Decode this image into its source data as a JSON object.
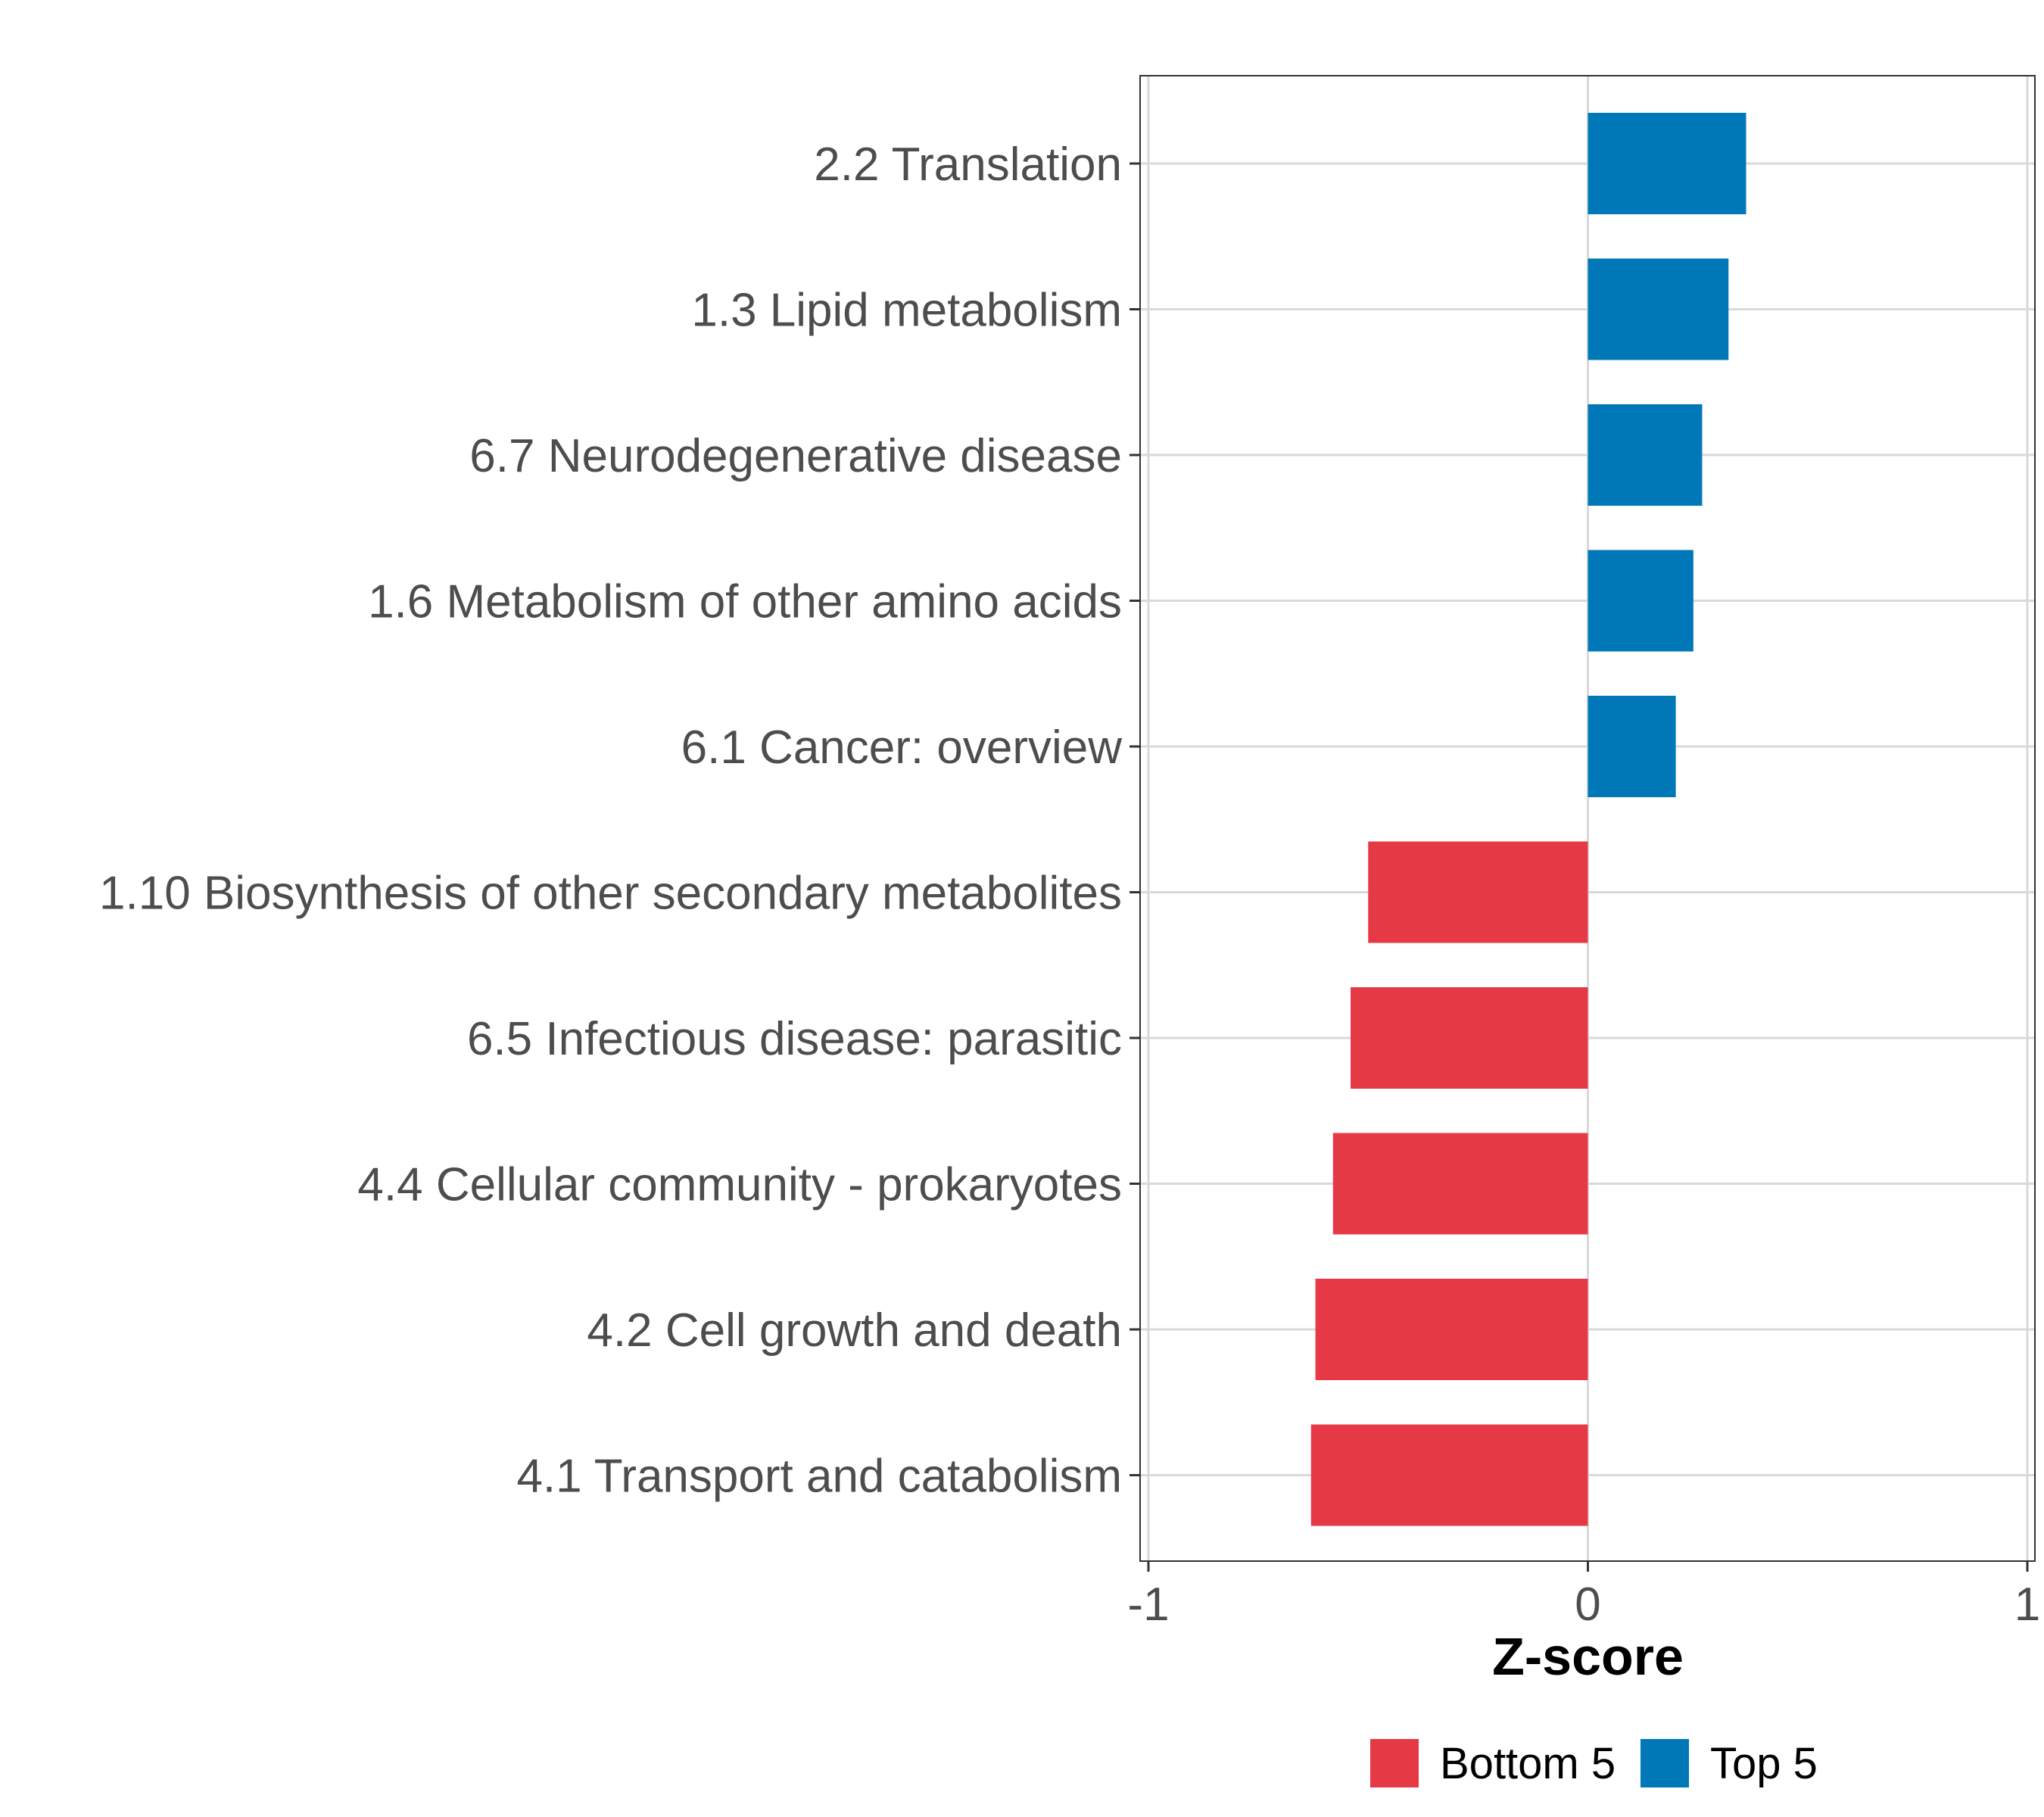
{
  "chart_data": {
    "type": "bar",
    "orientation": "horizontal",
    "categories": [
      "2.2 Translation",
      "1.3 Lipid metabolism",
      "6.7 Neurodegenerative disease",
      "1.6 Metabolism of other amino acids",
      "6.1 Cancer: overview",
      "1.10 Biosynthesis of other secondary metabolites",
      "6.5 Infectious disease: parasitic",
      "4.4 Cellular community - prokaryotes",
      "4.2 Cell growth and death",
      "4.1 Transport and catabolism"
    ],
    "values": [
      0.36,
      0.32,
      0.26,
      0.24,
      0.2,
      -0.5,
      -0.54,
      -0.58,
      -0.62,
      -0.63
    ],
    "groups": [
      "Top 5",
      "Top 5",
      "Top 5",
      "Top 5",
      "Top 5",
      "Bottom 5",
      "Bottom 5",
      "Bottom 5",
      "Bottom 5",
      "Bottom 5"
    ],
    "xlabel": "Z-score",
    "ylabel": "",
    "xlim": [
      -1,
      1
    ],
    "xticks": [
      "-1",
      "0",
      "1"
    ],
    "grid": true,
    "legend": {
      "position": "bottom",
      "items": [
        {
          "name": "Bottom 5",
          "color": "#e63946"
        },
        {
          "name": "Top 5",
          "color": "#0077b6"
        }
      ]
    },
    "colors": {
      "Top 5": "#0077b6",
      "Bottom 5": "#e63946"
    }
  }
}
